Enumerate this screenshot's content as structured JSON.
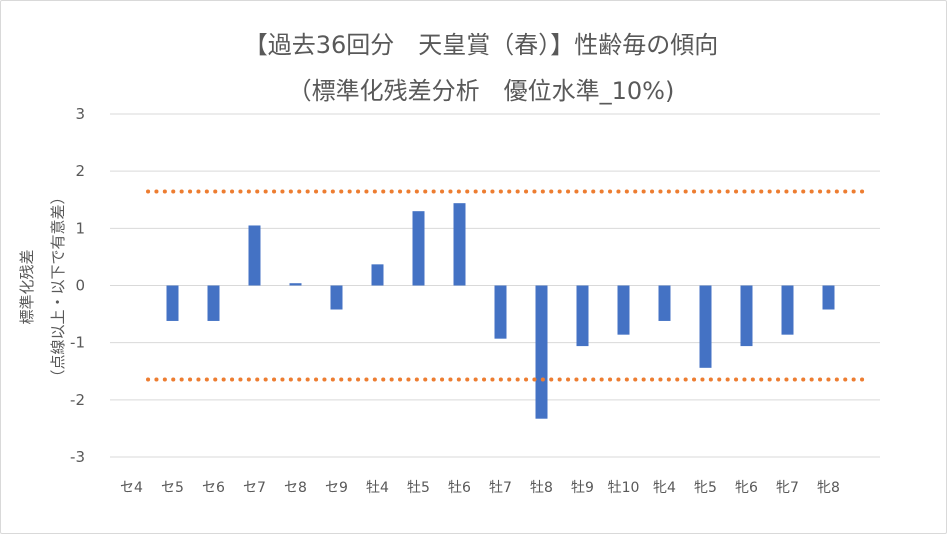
{
  "chart_data": {
    "type": "bar",
    "title": "【過去36回分　天皇賞（春）】性齢毎の傾向",
    "subtitle": "（標準化残差分析　優位水準_10%)",
    "ylabel_line1": "標準化残差",
    "ylabel_line2": "（点線以上・以下で有意差）",
    "xlabel": "",
    "ylim": [
      -3,
      3
    ],
    "yticks": [
      3,
      2,
      1,
      0,
      -1,
      -2,
      -3
    ],
    "categories": [
      "セ4",
      "セ5",
      "セ6",
      "セ7",
      "セ8",
      "セ9",
      "牡4",
      "牡5",
      "牡6",
      "牡7",
      "牡8",
      "牡9",
      "牡10",
      "牝4",
      "牝5",
      "牝6",
      "牝7",
      "牝8"
    ],
    "values": [
      0,
      -0.62,
      -0.62,
      1.05,
      0.04,
      -0.42,
      0.37,
      1.3,
      1.44,
      -0.93,
      -2.33,
      -1.06,
      -0.86,
      -0.62,
      -1.44,
      -1.06,
      -0.86,
      -0.42
    ],
    "thresholds": [
      1.645,
      -1.645
    ],
    "bar_color": "#4472c4",
    "threshold_color": "#ed7d31",
    "grid_color": "#d9d9d9",
    "grid": true,
    "legend": "none"
  }
}
